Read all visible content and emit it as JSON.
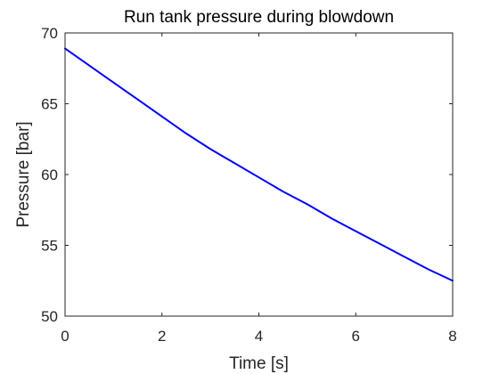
{
  "chart_data": {
    "type": "line",
    "title": "Run tank pressure during blowdown",
    "xlabel": "Time [s]",
    "ylabel": "Pressure [bar]",
    "xlim": [
      0,
      8
    ],
    "ylim": [
      50,
      70
    ],
    "xticks": [
      0,
      2,
      4,
      6,
      8
    ],
    "yticks": [
      50,
      55,
      60,
      65,
      70
    ],
    "grid": false,
    "series": [
      {
        "color": "#0000ff",
        "x": [
          0,
          0.5,
          1,
          1.5,
          2,
          2.5,
          3,
          3.5,
          4,
          4.5,
          5,
          5.5,
          6,
          6.5,
          7,
          7.5,
          8
        ],
        "y": [
          68.9,
          67.7,
          66.5,
          65.3,
          64.1,
          62.9,
          61.8,
          60.8,
          59.8,
          58.8,
          57.9,
          56.9,
          56.0,
          55.1,
          54.2,
          53.3,
          52.5
        ]
      }
    ]
  }
}
